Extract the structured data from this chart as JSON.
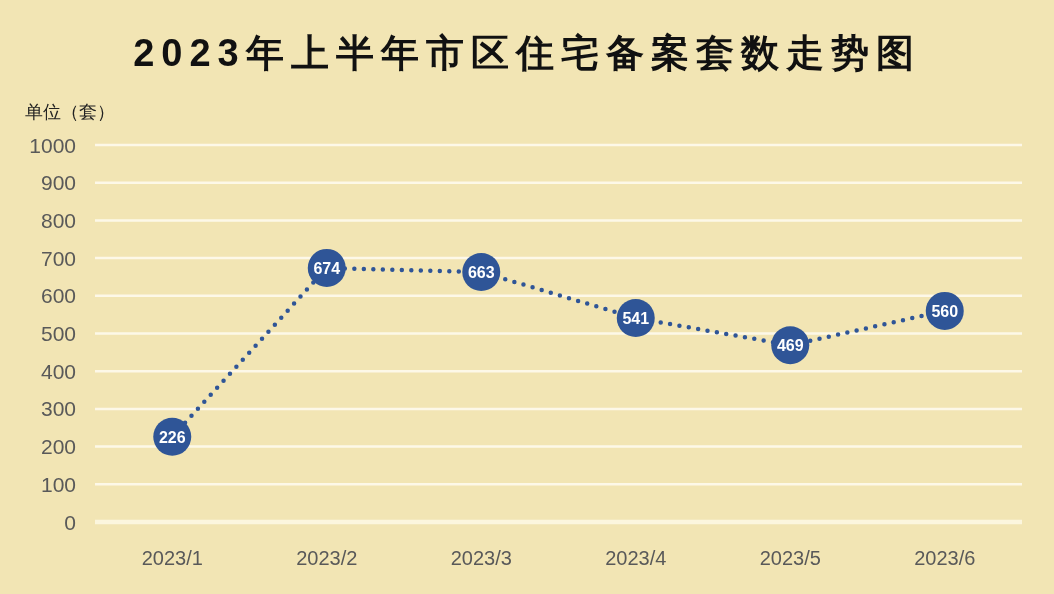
{
  "chart_data": {
    "type": "line",
    "title": "2023年上半年市区住宅备案套数走势图",
    "ylabel": "单位（套）",
    "categories": [
      "2023/1",
      "2023/2",
      "2023/3",
      "2023/4",
      "2023/5",
      "2023/6"
    ],
    "series": [
      {
        "color": "#2f5597",
        "values": [
          226,
          674,
          663,
          541,
          469,
          560
        ]
      }
    ],
    "ylim": [
      0,
      1000
    ],
    "yticks": [
      0,
      100,
      200,
      300,
      400,
      500,
      600,
      700,
      800,
      900,
      1000
    ],
    "grid": "y",
    "marker": "circle",
    "line_style": "dotted",
    "data_labels": true
  }
}
